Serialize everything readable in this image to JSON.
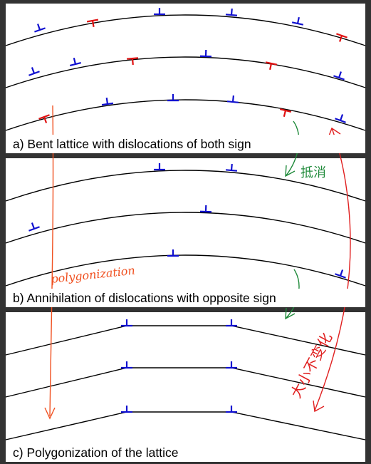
{
  "panels": {
    "a": {
      "caption": "a) Bent lattice with dislocations of both sign"
    },
    "b": {
      "caption": "b) Annihilation of dislocations with opposite sign"
    },
    "c": {
      "caption": "c) Polygonization of the lattice"
    }
  },
  "annotations": {
    "cancel_label": "抵消",
    "polygonization_label": "polygonization",
    "unchanged_label": "大小不变化"
  },
  "colors": {
    "frame": "#333333",
    "lattice_line": "#000000",
    "dislocation_positive": "#1010d0",
    "dislocation_negative": "#e01010",
    "cancel_annotation": "#1f8a3a",
    "polygonization_annotation": "#f05020",
    "unchanged_annotation": "#e02020"
  },
  "icons": {
    "positive_dislocation": "dislocation-up-tee-icon",
    "negative_dislocation": "dislocation-down-tee-icon"
  }
}
